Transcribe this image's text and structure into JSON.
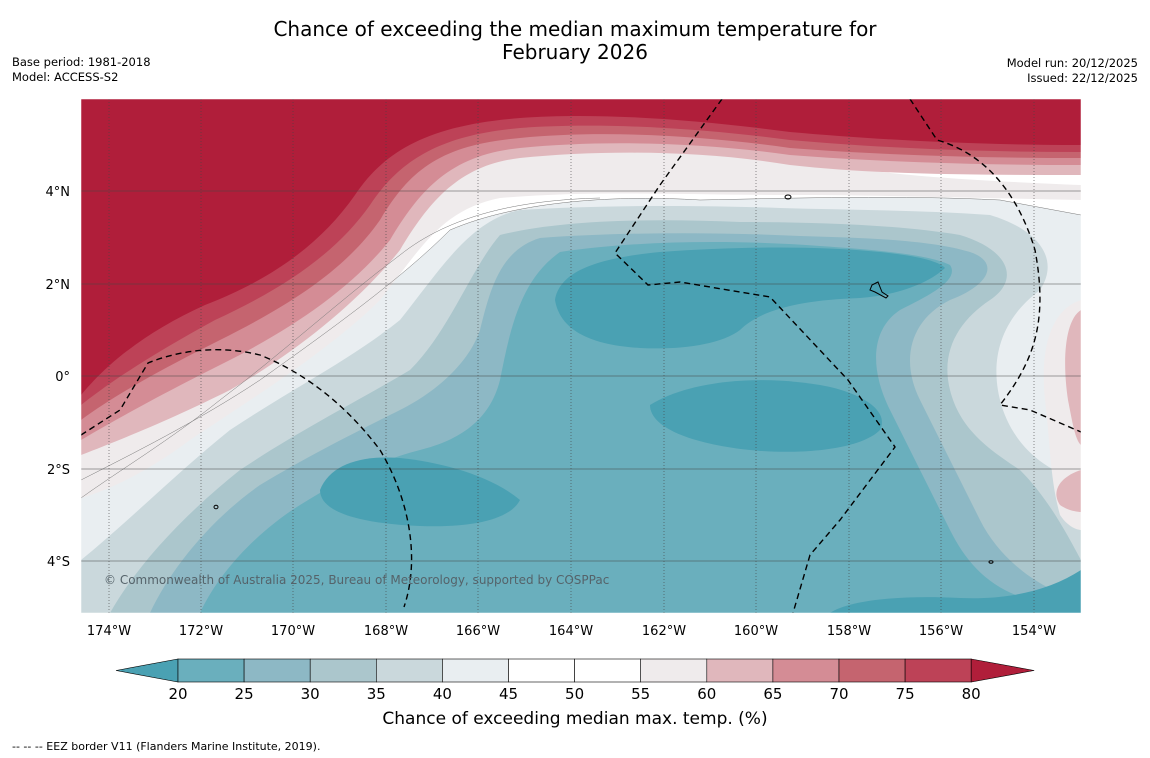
{
  "title": {
    "line1": "Chance of exceeding the median maximum temperature for",
    "line2": "February 2026"
  },
  "meta_left": {
    "base_period": "Base period: 1981-2018",
    "model": "Model: ACCESS-S2"
  },
  "meta_right": {
    "model_run": "Model run: 20/12/2025",
    "issued": "Issued: 22/12/2025"
  },
  "map": {
    "x_ticks": [
      "174°W",
      "172°W",
      "170°W",
      "168°W",
      "166°W",
      "164°W",
      "162°W",
      "160°W",
      "158°W",
      "156°W",
      "154°W"
    ],
    "y_ticks": [
      "4°N",
      "2°N",
      "0°",
      "2°S",
      "4°S"
    ],
    "copyright": "© Commonwealth of Australia 2025, Bureau of Meteorology, supported by COSPPac"
  },
  "colorbar": {
    "ticks": [
      "20",
      "25",
      "30",
      "35",
      "40",
      "45",
      "50",
      "55",
      "60",
      "65",
      "70",
      "75",
      "80"
    ],
    "colors": [
      "#4aa1b3",
      "#6aafbd",
      "#8db8c5",
      "#abc6cc",
      "#cad8dc",
      "#e9eef1",
      "#ffffff",
      "#ffffff",
      "#efebec",
      "#e0b7bc",
      "#d48c95",
      "#c5646f",
      "#bd4257",
      "#b01e3a"
    ],
    "label": "Chance of exceeding median max. temp. (%)"
  },
  "footnote": "--  --  -- EEZ border V11 (Flanders Marine Institute, 2019)."
}
